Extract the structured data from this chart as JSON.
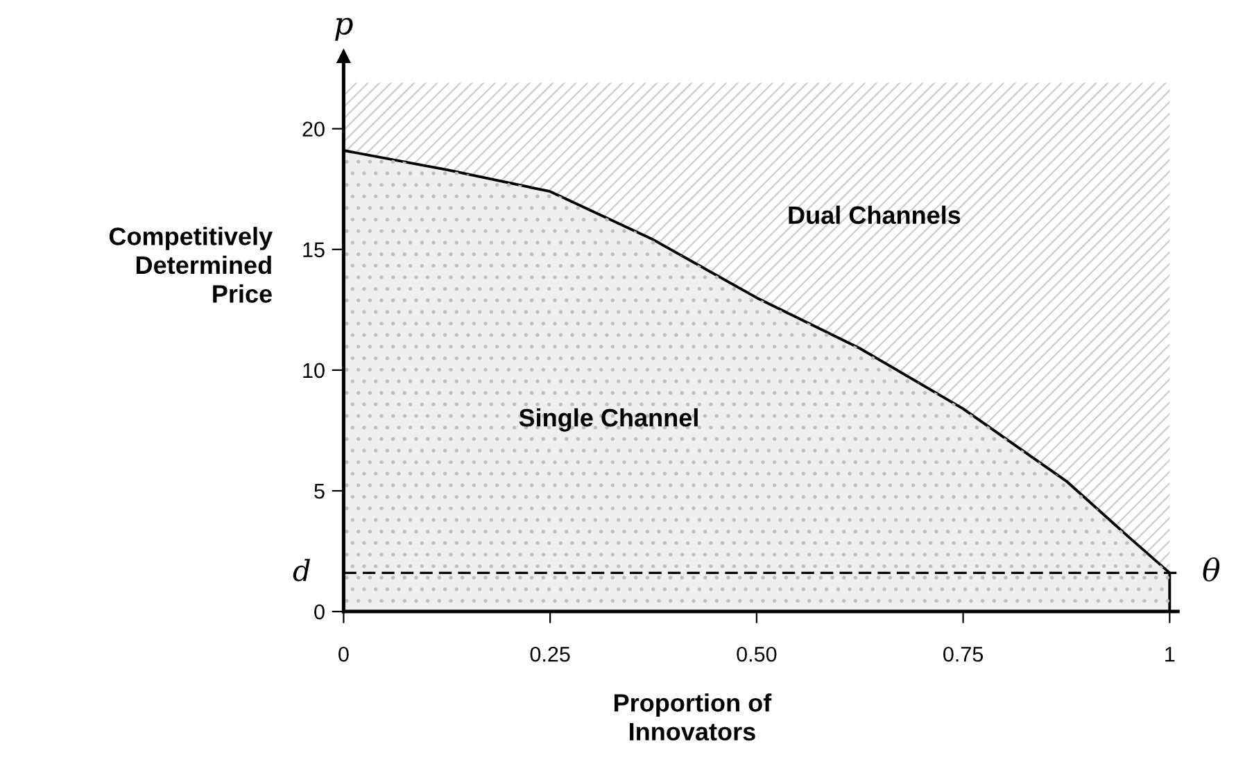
{
  "chart_data": {
    "type": "area",
    "ylabel": "Competitively\nDetermined\nPrice",
    "xlabel": "Proportion of\nInnovators",
    "x": [
      0,
      0.125,
      0.25,
      0.375,
      0.5,
      0.625,
      0.75,
      0.875,
      0.95,
      1
    ],
    "series": [
      {
        "color": "#bfbfbf",
        "values": [
          19.1,
          18.3,
          17.4,
          15.4,
          13.0,
          10.9,
          8.4,
          5.4,
          3.1,
          1.6
        ]
      },
      {
        "color": "#cccccc",
        "values": [
          2.8,
          3.6,
          4.5,
          6.5,
          8.9,
          11.0,
          13.5,
          16.5,
          18.8,
          20.3
        ]
      }
    ],
    "stacked": true,
    "xlim": [
      0,
      1.01
    ],
    "ylim": [
      0,
      23
    ],
    "xticks": [
      0,
      0.25,
      {
        "value": 0.5,
        "label": "0.50"
      },
      0.75,
      1
    ],
    "yticks": [
      0,
      5,
      10,
      15,
      20
    ],
    "ref_lines": [
      {
        "axis": "y",
        "value": 1.6,
        "label": "d",
        "color": "#000000",
        "line_style": "dashed"
      }
    ],
    "annotations": [
      "Dual Channels",
      "Single Channel",
      "p",
      "θ"
    ],
    "grid": false,
    "legend": false
  }
}
